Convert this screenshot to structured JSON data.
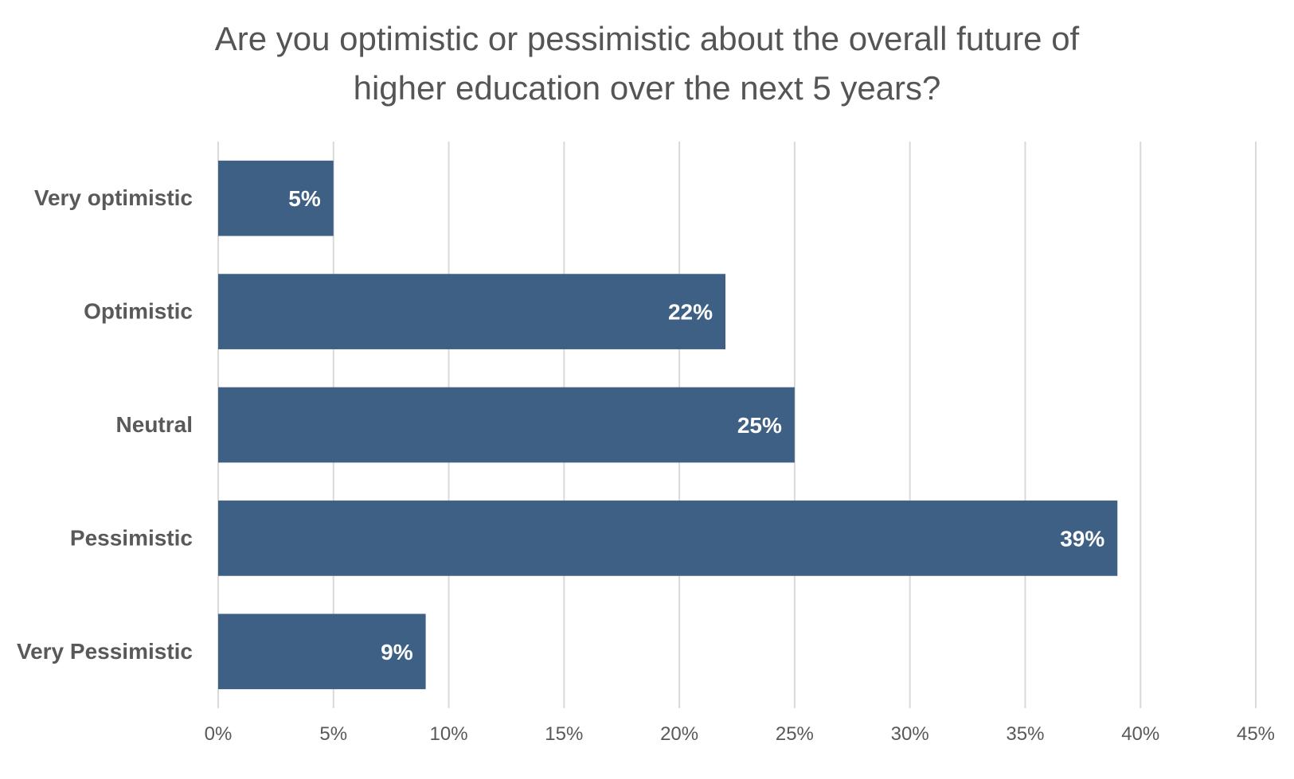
{
  "chart_data": {
    "type": "bar",
    "orientation": "horizontal",
    "title_lines": [
      "Are you optimistic or pessimistic about the overall future of",
      "higher education over the next 5 years?"
    ],
    "categories": [
      "Very optimistic",
      "Optimistic",
      "Neutral",
      "Pessimistic",
      "Very Pessimistic"
    ],
    "values": [
      5,
      22,
      25,
      39,
      9
    ],
    "data_labels": [
      "5%",
      "22%",
      "25%",
      "39%",
      "9%"
    ],
    "x_ticks": [
      "0%",
      "5%",
      "10%",
      "15%",
      "20%",
      "25%",
      "30%",
      "35%",
      "40%",
      "45%"
    ],
    "xlim": [
      0,
      45
    ],
    "xlabel": "",
    "ylabel": "",
    "grid": "vertical",
    "legend": "none",
    "bar_color": "#3F6085",
    "gridline_color": "#D9D9D9"
  }
}
